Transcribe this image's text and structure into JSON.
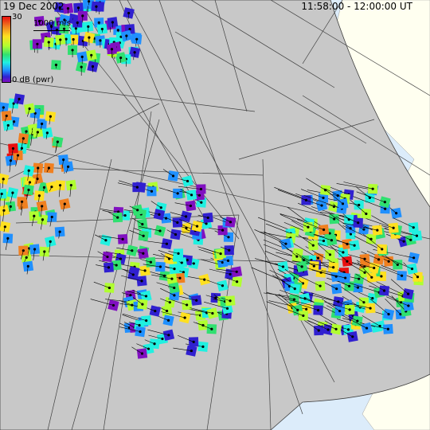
{
  "header": {
    "date": "19 Dec 2002",
    "time_range": "11:58:00 - 12:00:00 UT"
  },
  "legend": {
    "scale_max": "30",
    "scale_min": "0 dB (pwr)",
    "velocity_label": "1000 m/s"
  },
  "colors": {
    "ocean": "#dcecfa",
    "land": "#c8c8c8",
    "ice_land": "#fffff0",
    "grid_line": "#404040",
    "power_scale": [
      "#8010c0",
      "#3020d0",
      "#2090ff",
      "#20f0e0",
      "#30e070",
      "#b0ff30",
      "#ffe020",
      "#f08020",
      "#e81010"
    ]
  }
}
